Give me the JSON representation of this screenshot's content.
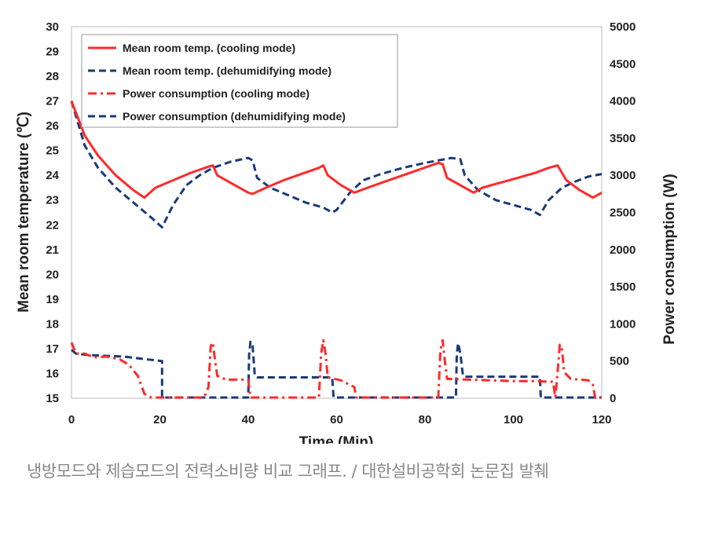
{
  "caption": "냉방모드와 제습모드의 전력소비량 비교 그래프. / 대한설비공학회 논문집 발췌",
  "chart_data": {
    "type": "line",
    "title": "",
    "xlabel": "Time (Min)",
    "ylabel_left": "Mean room temperature (℃)",
    "ylabel_right": "Power consumption (W)",
    "xlim": [
      0,
      120
    ],
    "ylim_left": [
      15,
      30
    ],
    "ylim_right": [
      0,
      5000
    ],
    "x_ticks": [
      "0",
      "20",
      "40",
      "60",
      "80",
      "100",
      "120"
    ],
    "y_left_ticks": [
      "15",
      "16",
      "17",
      "18",
      "19",
      "20",
      "21",
      "22",
      "23",
      "24",
      "25",
      "26",
      "27",
      "28",
      "29",
      "30"
    ],
    "y_right_ticks": [
      "0",
      "500",
      "1000",
      "1500",
      "2000",
      "2500",
      "3000",
      "3500",
      "4000",
      "4500",
      "5000"
    ],
    "grid": false,
    "legend_position": "top-left",
    "series": [
      {
        "name": "Mean room temp. (cooling mode)",
        "axis": "left",
        "color": "#ff2a2a",
        "style": "solid",
        "points": [
          [
            0,
            27
          ],
          [
            3,
            25.6
          ],
          [
            6,
            24.8
          ],
          [
            10,
            24.0
          ],
          [
            14,
            23.4
          ],
          [
            16.5,
            23.1
          ],
          [
            19,
            23.5
          ],
          [
            23,
            23.8
          ],
          [
            27,
            24.1
          ],
          [
            31,
            24.35
          ],
          [
            32,
            24.4
          ],
          [
            33,
            24.0
          ],
          [
            36,
            23.7
          ],
          [
            40,
            23.3
          ],
          [
            41,
            23.25
          ],
          [
            44,
            23.5
          ],
          [
            48,
            23.8
          ],
          [
            52,
            24.05
          ],
          [
            56,
            24.3
          ],
          [
            57,
            24.4
          ],
          [
            58,
            24.0
          ],
          [
            61,
            23.6
          ],
          [
            64,
            23.3
          ],
          [
            67,
            23.5
          ],
          [
            71,
            23.75
          ],
          [
            75,
            24.0
          ],
          [
            79,
            24.25
          ],
          [
            83,
            24.5
          ],
          [
            84,
            24.45
          ],
          [
            85,
            23.9
          ],
          [
            88,
            23.6
          ],
          [
            91,
            23.3
          ],
          [
            93,
            23.5
          ],
          [
            97,
            23.7
          ],
          [
            101,
            23.9
          ],
          [
            105,
            24.1
          ],
          [
            108,
            24.3
          ],
          [
            110,
            24.4
          ],
          [
            112,
            23.8
          ],
          [
            115,
            23.4
          ],
          [
            118,
            23.1
          ],
          [
            120,
            23.3
          ]
        ]
      },
      {
        "name": "Mean room temp. (dehumidifying mode)",
        "axis": "left",
        "color": "#1a3a7a",
        "style": "dash",
        "points": [
          [
            0,
            27
          ],
          [
            3,
            25.2
          ],
          [
            6,
            24.3
          ],
          [
            10,
            23.5
          ],
          [
            14,
            22.9
          ],
          [
            18,
            22.3
          ],
          [
            20.5,
            21.9
          ],
          [
            23,
            22.8
          ],
          [
            26,
            23.6
          ],
          [
            29,
            24.0
          ],
          [
            32,
            24.3
          ],
          [
            36,
            24.55
          ],
          [
            40,
            24.7
          ],
          [
            41,
            24.6
          ],
          [
            42,
            23.9
          ],
          [
            45,
            23.5
          ],
          [
            49,
            23.2
          ],
          [
            53,
            22.9
          ],
          [
            57,
            22.7
          ],
          [
            59,
            22.5
          ],
          [
            60,
            22.6
          ],
          [
            63,
            23.3
          ],
          [
            66,
            23.8
          ],
          [
            70,
            24.05
          ],
          [
            75,
            24.3
          ],
          [
            80,
            24.5
          ],
          [
            86,
            24.7
          ],
          [
            88,
            24.65
          ],
          [
            89,
            24.0
          ],
          [
            92,
            23.4
          ],
          [
            96,
            23.0
          ],
          [
            100,
            22.8
          ],
          [
            104,
            22.6
          ],
          [
            106,
            22.4
          ],
          [
            108,
            23.0
          ],
          [
            111,
            23.5
          ],
          [
            114,
            23.75
          ],
          [
            117,
            23.95
          ],
          [
            120,
            24.05
          ]
        ]
      },
      {
        "name": "Power consumption (cooling mode)",
        "axis": "right",
        "color": "#ff2a2a",
        "style": "dashdot",
        "points": [
          [
            0,
            750
          ],
          [
            1,
            600
          ],
          [
            3,
            600
          ],
          [
            5,
            550
          ],
          [
            8,
            560
          ],
          [
            11,
            520
          ],
          [
            13,
            450
          ],
          [
            15,
            300
          ],
          [
            16.5,
            60
          ],
          [
            18,
            10
          ],
          [
            30,
            10
          ],
          [
            31,
            150
          ],
          [
            31.5,
            700
          ],
          [
            32,
            750
          ],
          [
            32.5,
            500
          ],
          [
            33,
            300
          ],
          [
            35,
            250
          ],
          [
            40,
            250
          ],
          [
            40.5,
            10
          ],
          [
            56,
            10
          ],
          [
            56.5,
            600
          ],
          [
            57,
            780
          ],
          [
            57.5,
            600
          ],
          [
            58,
            280
          ],
          [
            61,
            240
          ],
          [
            64,
            150
          ],
          [
            64.5,
            10
          ],
          [
            83,
            10
          ],
          [
            83.5,
            650
          ],
          [
            84,
            780
          ],
          [
            84.5,
            500
          ],
          [
            85,
            260
          ],
          [
            90,
            250
          ],
          [
            95,
            240
          ],
          [
            100,
            230
          ],
          [
            105,
            230
          ],
          [
            109,
            220
          ],
          [
            109.5,
            10
          ],
          [
            110,
            350
          ],
          [
            110.5,
            720
          ],
          [
            111,
            650
          ],
          [
            111.5,
            350
          ],
          [
            113,
            260
          ],
          [
            117,
            240
          ],
          [
            118,
            180
          ],
          [
            118.5,
            10
          ],
          [
            120,
            10
          ]
        ]
      },
      {
        "name": "Power consumption (dehumidifying mode)",
        "axis": "right",
        "color": "#1a3a7a",
        "style": "dash",
        "points": [
          [
            0,
            650
          ],
          [
            1,
            600
          ],
          [
            4,
            580
          ],
          [
            8,
            570
          ],
          [
            12,
            560
          ],
          [
            16,
            530
          ],
          [
            20.5,
            500
          ],
          [
            20.5,
            10
          ],
          [
            40,
            10
          ],
          [
            40.2,
            580
          ],
          [
            40.5,
            760
          ],
          [
            41,
            700
          ],
          [
            41.5,
            300
          ],
          [
            42,
            280
          ],
          [
            50,
            280
          ],
          [
            59,
            280
          ],
          [
            59.3,
            10
          ],
          [
            87,
            10
          ],
          [
            87.2,
            600
          ],
          [
            87.5,
            740
          ],
          [
            88,
            600
          ],
          [
            88.6,
            300
          ],
          [
            89,
            290
          ],
          [
            95,
            290
          ],
          [
            100,
            290
          ],
          [
            105,
            290
          ],
          [
            106,
            290
          ],
          [
            106.2,
            10
          ],
          [
            120,
            10
          ]
        ]
      }
    ]
  }
}
